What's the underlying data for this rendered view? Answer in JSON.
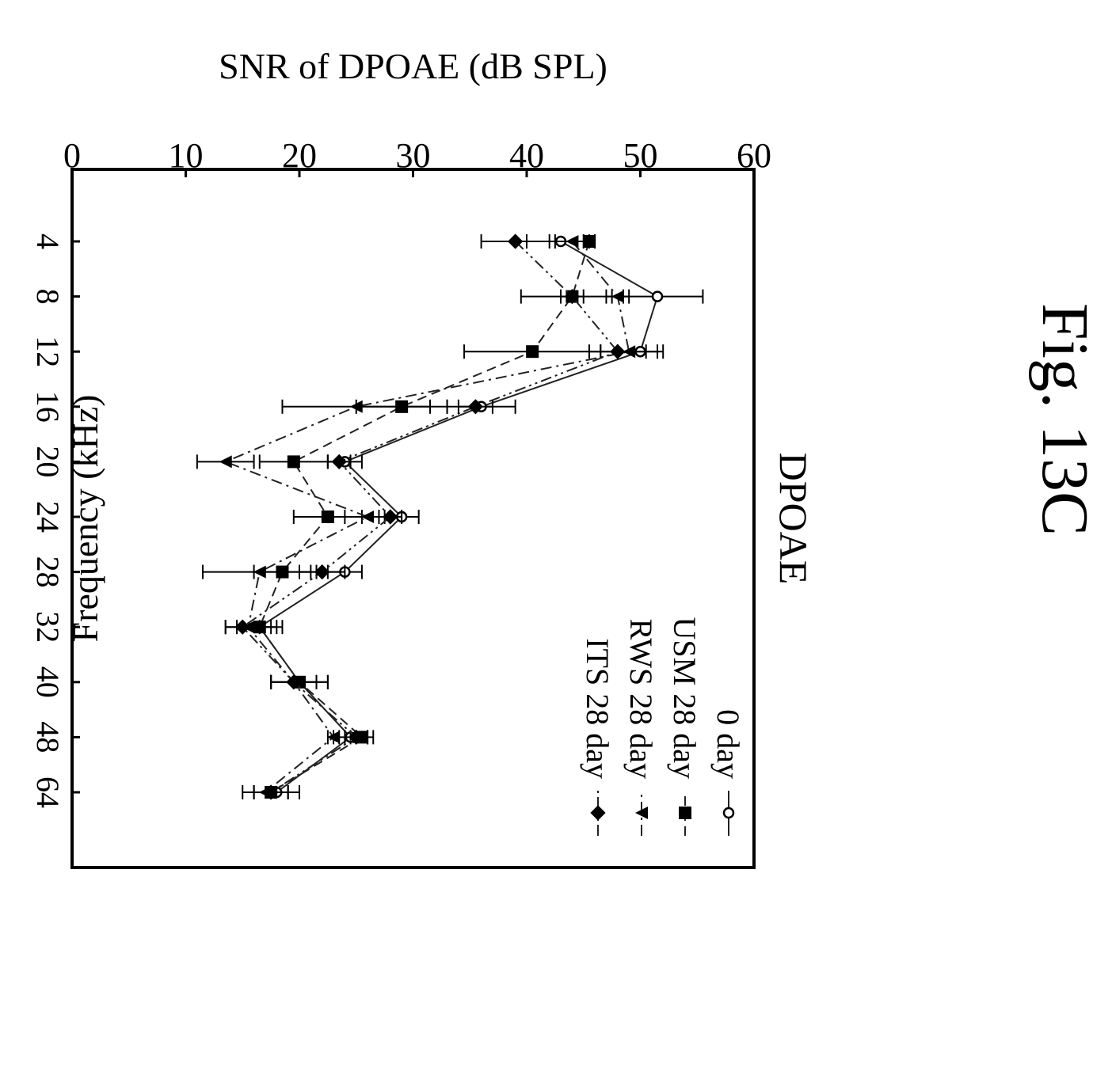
{
  "figure_label": "Fig. 13C",
  "chart_data": {
    "type": "line",
    "title": "DPOAE",
    "xlabel": "Frequency (kHz)",
    "ylabel": "SNR of DPOAE (dB SPL)",
    "categories": [
      "4",
      "8",
      "12",
      "16",
      "20",
      "24",
      "28",
      "32",
      "40",
      "48",
      "64"
    ],
    "ylim": [
      0,
      60
    ],
    "yticks": [
      "0",
      "10",
      "20",
      "30",
      "40",
      "50",
      "60"
    ],
    "grid": false,
    "legend_position": "top-right",
    "orientation": "rotated 90 degrees clockwise",
    "series": [
      {
        "name": "0 day",
        "marker": "open-circle",
        "linestyle": "solid",
        "values": [
          43,
          51.5,
          50,
          36,
          24,
          29,
          24,
          16.5,
          20,
          24.5,
          18
        ],
        "errors": [
          3,
          4,
          2,
          3,
          1.5,
          1.5,
          1.5,
          2,
          2.5,
          1.5,
          2
        ]
      },
      {
        "name": "USM 28 day",
        "marker": "filled-square",
        "linestyle": "dashed",
        "values": [
          45.5,
          44,
          40.5,
          29,
          19.5,
          22.5,
          18.5,
          16.5,
          20,
          25.5,
          17.5
        ],
        "errors": [
          0.5,
          4.5,
          6,
          4,
          3,
          3,
          2.5,
          1.5,
          2.5,
          1,
          1.5
        ]
      },
      {
        "name": "RWS 28 day",
        "marker": "filled-triangle",
        "linestyle": "dash-dot",
        "values": [
          44,
          48,
          49,
          25,
          13.5,
          26,
          16.5,
          15.5,
          19.5,
          23,
          17
        ],
        "errors": [
          1.5,
          1,
          2.5,
          6.5,
          2.5,
          2,
          5,
          2,
          2,
          0.5,
          2
        ]
      },
      {
        "name": "ITS 28 day",
        "marker": "filled-diamond",
        "linestyle": "dash-dot-dot",
        "values": [
          39,
          44,
          48,
          35.5,
          23.5,
          28,
          22,
          15,
          19.5,
          25,
          17.5
        ],
        "errors": [
          3,
          1,
          2.5,
          1.5,
          1,
          1,
          2,
          1.5,
          2,
          1,
          1.5
        ]
      }
    ]
  }
}
